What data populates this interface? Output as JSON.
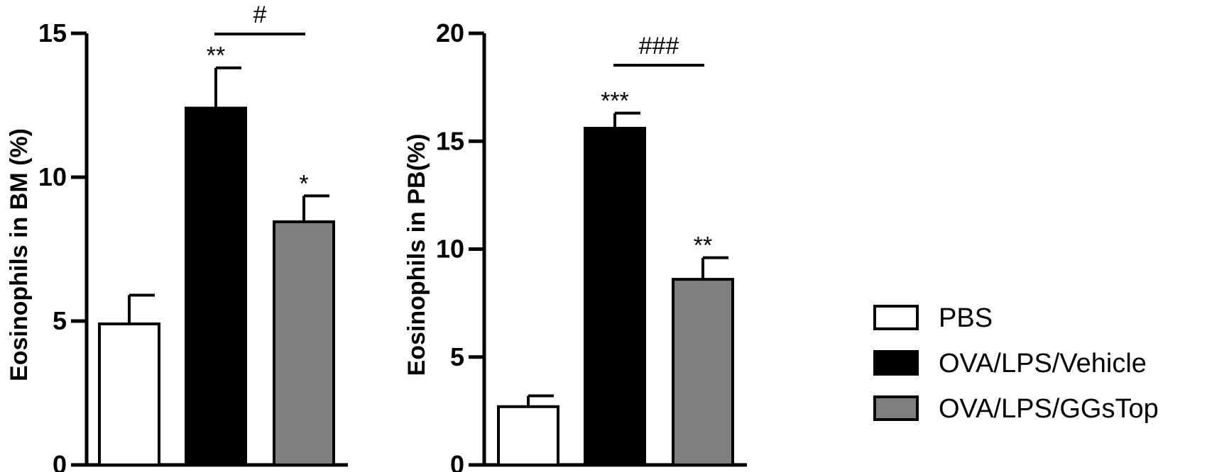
{
  "chart_data": [
    {
      "type": "bar",
      "ylabel": "Eosinophils in BM (%)",
      "ylim": [
        0,
        15
      ],
      "yticks": [
        0,
        5,
        10,
        15
      ],
      "categories": [
        "PBS",
        "OVA/LPS/Vehicle",
        "OVA/LPS/GGsTop"
      ],
      "values": [
        4.9,
        12.4,
        8.45
      ],
      "errors": [
        1.0,
        1.4,
        0.9
      ],
      "annotations": [
        "",
        "**",
        "*"
      ],
      "comparison": {
        "between": [
          1,
          2
        ],
        "label": "#"
      }
    },
    {
      "type": "bar",
      "ylabel": "Eosinophils in PB(%)",
      "ylim": [
        0,
        20
      ],
      "yticks": [
        0,
        5,
        10,
        15,
        20
      ],
      "categories": [
        "PBS",
        "OVA/LPS/Vehicle",
        "OVA/LPS/GGsTop"
      ],
      "values": [
        2.7,
        15.6,
        8.6
      ],
      "errors": [
        0.5,
        0.7,
        1.0
      ],
      "annotations": [
        "",
        "***",
        "**"
      ],
      "comparison": {
        "between": [
          1,
          2
        ],
        "label": "###"
      }
    }
  ],
  "legend": {
    "placement": "right",
    "items": [
      {
        "label": "PBS",
        "color": "#ffffff"
      },
      {
        "label": "OVA/LPS/Vehicle",
        "color": "#000000"
      },
      {
        "label": "OVA/LPS/GGsTop",
        "color": "#808080"
      }
    ]
  }
}
